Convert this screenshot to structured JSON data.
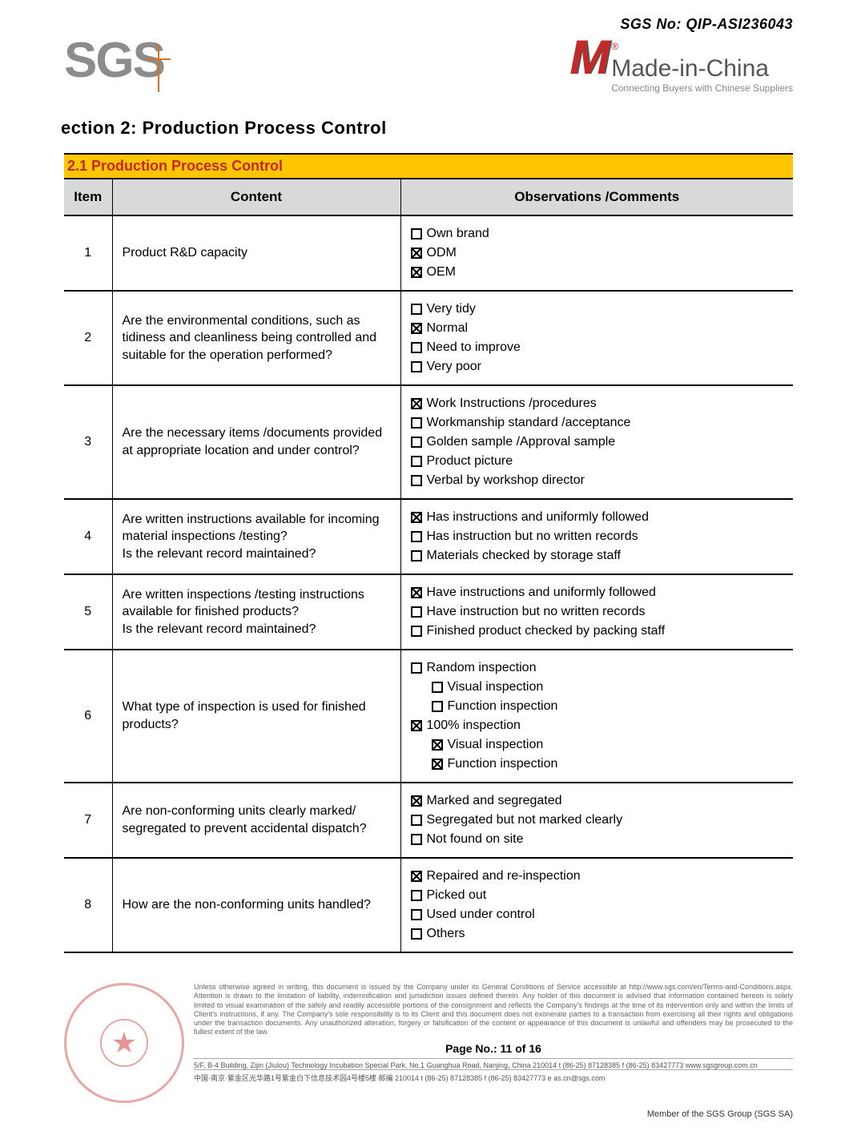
{
  "sgs_no_label": "SGS No: QIP-ASI236043",
  "logos": {
    "sgs_text": "SGS",
    "mic_m": "M",
    "mic_title": "Made-in-China",
    "mic_subtitle": "Connecting Buyers with Chinese Suppliers"
  },
  "section_title": "ection 2: Production Process Control",
  "banner": "2.1 Production Process Control",
  "columns": {
    "item": "Item",
    "content": "Content",
    "obs": "Observations /Comments"
  },
  "rows": [
    {
      "item": "1",
      "content": "Product R&D capacity",
      "options": [
        {
          "label": "Own brand",
          "checked": false
        },
        {
          "label": "ODM",
          "checked": true
        },
        {
          "label": "OEM",
          "checked": true
        }
      ]
    },
    {
      "item": "2",
      "content": "Are the environmental conditions, such as tidiness and cleanliness being controlled and suitable for the operation performed?",
      "options": [
        {
          "label": "Very tidy",
          "checked": false
        },
        {
          "label": "Normal",
          "checked": true
        },
        {
          "label": "Need to improve",
          "checked": false
        },
        {
          "label": "Very poor",
          "checked": false
        }
      ]
    },
    {
      "item": "3",
      "content": "Are the necessary items /documents provided at appropriate location and under control?",
      "options": [
        {
          "label": "Work Instructions /procedures",
          "checked": true
        },
        {
          "label": "Workmanship standard /acceptance",
          "checked": false
        },
        {
          "label": "Golden sample /Approval sample",
          "checked": false
        },
        {
          "label": "Product picture",
          "checked": false
        },
        {
          "label": "Verbal by workshop director",
          "checked": false
        }
      ]
    },
    {
      "item": "4",
      "content": "Are written instructions available for incoming material inspections /testing?\nIs the relevant record maintained?",
      "options": [
        {
          "label": "Has instructions and uniformly followed",
          "checked": true
        },
        {
          "label": "Has instruction but no written records",
          "checked": false
        },
        {
          "label": "Materials checked by storage staff",
          "checked": false
        }
      ]
    },
    {
      "item": "5",
      "content": "Are written inspections /testing instructions available for finished products?\nIs the relevant record maintained?",
      "options": [
        {
          "label": "Have instructions and uniformly followed",
          "checked": true
        },
        {
          "label": "Have instruction but no written records",
          "checked": false
        },
        {
          "label": "Finished product checked by packing staff",
          "checked": false
        }
      ]
    },
    {
      "item": "6",
      "content": "What type of inspection is used for finished products?",
      "options": [
        {
          "label": "Random inspection",
          "checked": false
        },
        {
          "label": "Visual inspection",
          "checked": false,
          "indent": true
        },
        {
          "label": "Function inspection",
          "checked": false,
          "indent": true
        },
        {
          "label": "100% inspection",
          "checked": true
        },
        {
          "label": "Visual inspection",
          "checked": true,
          "indent": true
        },
        {
          "label": "Function inspection",
          "checked": true,
          "indent": true
        }
      ]
    },
    {
      "item": "7",
      "content": "Are non-conforming units clearly marked/ segregated to prevent accidental dispatch?",
      "options": [
        {
          "label": "Marked and segregated",
          "checked": true
        },
        {
          "label": "Segregated but not marked clearly",
          "checked": false
        },
        {
          "label": "Not found on site",
          "checked": false
        }
      ]
    },
    {
      "item": "8",
      "content": "How are the non-conforming units handled?",
      "options": [
        {
          "label": "Repaired and re-inspection",
          "checked": true
        },
        {
          "label": "Picked out",
          "checked": false
        },
        {
          "label": "Used under control",
          "checked": false
        },
        {
          "label": "Others",
          "checked": false
        }
      ]
    }
  ],
  "footer": {
    "disclaimer": "Unless otherwise agreed in writing, this document is issued by the Company under its General Conditions of Service accessible at http://www.sgs.com/en/Terms-and-Conditions.aspx. Attention is drawn to the limitation of liability, indemnification and jurisdiction issues defined therein. Any holder of this document is advised that information contained hereon is solely limited to visual examination of the safely and readily accessible portions of the consignment and reflects the Company's findings at the time of its intervention only and within the limits of Client's instructions, if any. The Company's sole responsibility is to its Client and this document does not exonerate parties to a transaction from exercising all their rights and obligations under the transaction documents. Any unauthorized alteration, forgery or falsification of the content or appearance of this document is unlawful and offenders may be prosecuted to the fullest extent of the law.",
    "page_no": "Page No.: 11 of 16",
    "addr1": "5/F, B-4 Building, Zijin (Jiulou) Technology Incubation Special Park, No.1 Guanghua Road, Nanjing, China 210014    t (86-25) 87128385   f (86-25) 83427773   www.sgsgroup.com.cn",
    "addr2": "中国·南京·紫金区光华路1号紫金白下信息技术园4号楼5楼 邮编  210014    t (86-25) 87128385   f (86-25) 83427773   e  as.cn@sgs.com",
    "member": "Member of the SGS Group (SGS SA)"
  }
}
